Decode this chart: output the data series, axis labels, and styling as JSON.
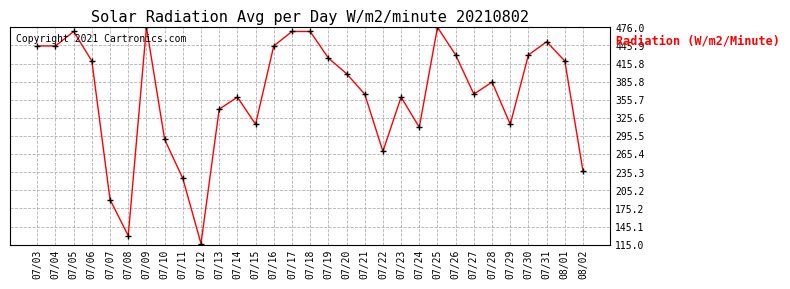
{
  "title": "Solar Radiation Avg per Day W/m2/minute 20210802",
  "copyright_text": "Copyright 2021 Cartronics.com",
  "legend_label": "Radiation (W/m2/Minute)",
  "dates": [
    "07/03",
    "07/04",
    "07/05",
    "07/06",
    "07/07",
    "07/08",
    "07/09",
    "07/10",
    "07/11",
    "07/12",
    "07/13",
    "07/14",
    "07/15",
    "07/16",
    "07/17",
    "07/18",
    "07/19",
    "07/20",
    "07/21",
    "07/22",
    "07/23",
    "07/24",
    "07/25",
    "07/26",
    "07/27",
    "07/28",
    "07/29",
    "07/30",
    "07/31",
    "08/01",
    "08/02"
  ],
  "values": [
    445.0,
    445.0,
    469.0,
    420.0,
    190.0,
    130.0,
    476.0,
    290.0,
    225.0,
    117.0,
    340.0,
    360.0,
    315.0,
    445.0,
    469.0,
    469.0,
    425.0,
    399.0,
    365.0,
    270.0,
    360.0,
    310.0,
    476.0,
    430.0,
    365.0,
    385.0,
    315.0,
    430.0,
    452.0,
    420.0,
    237.0
  ],
  "ymin": 115.0,
  "ymax": 476.0,
  "yticks": [
    476.0,
    445.9,
    415.8,
    385.8,
    355.7,
    325.6,
    295.5,
    265.4,
    235.3,
    205.2,
    175.2,
    145.1,
    115.0
  ],
  "line_color": "red",
  "marker_color": "black",
  "bg_color": "#ffffff",
  "grid_color": "#aaaaaa",
  "title_fontsize": 11,
  "copyright_fontsize": 7,
  "legend_fontsize": 8.5,
  "tick_fontsize": 7,
  "legend_color": "red"
}
